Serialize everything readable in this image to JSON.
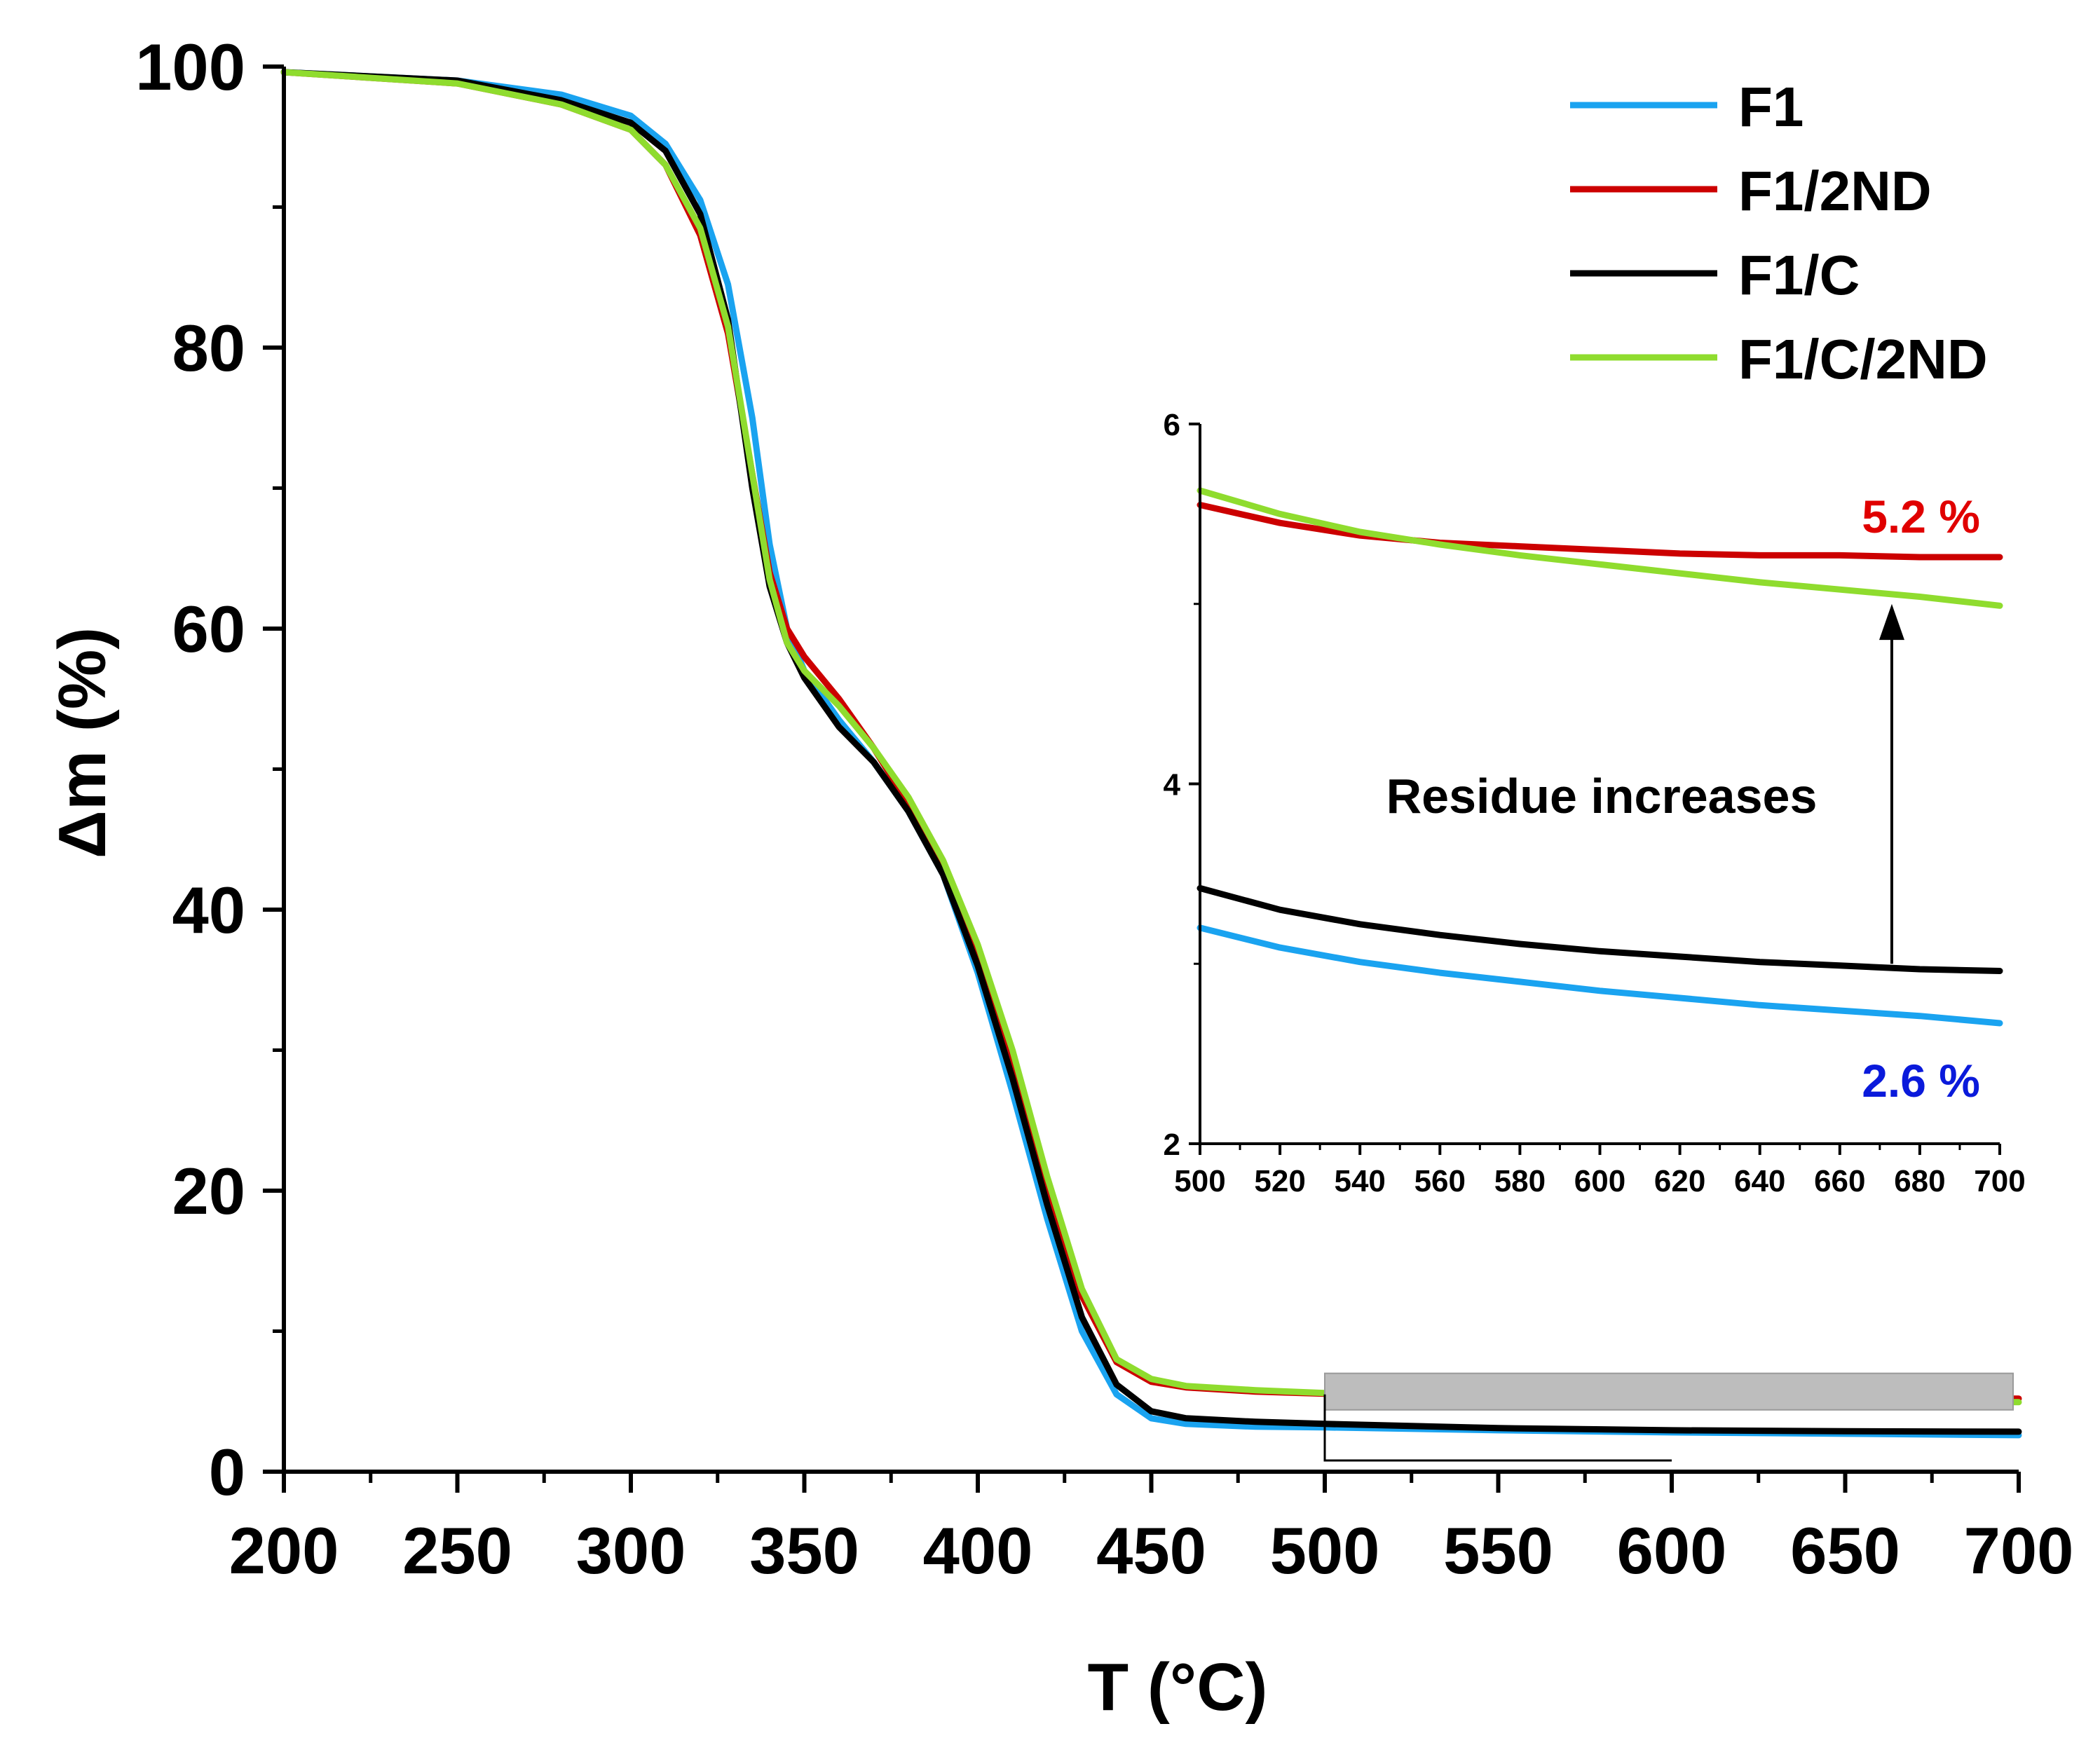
{
  "chart_data": {
    "type": "line",
    "xlabel": "T (°C)",
    "ylabel": "Δm (%)",
    "xlim": [
      200,
      700
    ],
    "ylim": [
      0,
      100
    ],
    "xticks": [
      200,
      250,
      300,
      350,
      400,
      450,
      500,
      550,
      600,
      650,
      700
    ],
    "yticks": [
      0,
      20,
      40,
      60,
      80,
      100
    ],
    "legend_position": "top-right",
    "series": [
      {
        "name": "F1",
        "color": "#1aa3f0",
        "x": [
          200,
          250,
          280,
          300,
          310,
          320,
          328,
          335,
          340,
          345,
          350,
          360,
          370,
          380,
          390,
          400,
          410,
          420,
          430,
          440,
          450,
          460,
          480,
          500,
          550,
          600,
          650,
          700
        ],
        "y": [
          99.6,
          99.0,
          98.0,
          96.5,
          94.5,
          90.5,
          84.5,
          75,
          66,
          60,
          57,
          53.5,
          50.5,
          47,
          42.5,
          35.5,
          27,
          18,
          10,
          5.5,
          3.8,
          3.4,
          3.2,
          3.15,
          2.95,
          2.8,
          2.7,
          2.6
        ]
      },
      {
        "name": "F1/2ND",
        "color": "#cc0000",
        "x": [
          200,
          250,
          280,
          300,
          310,
          320,
          328,
          335,
          340,
          345,
          350,
          360,
          370,
          380,
          390,
          400,
          410,
          420,
          430,
          440,
          450,
          460,
          480,
          500,
          550,
          600,
          650,
          700
        ],
        "y": [
          99.6,
          98.8,
          97.3,
          95.5,
          93,
          88,
          81,
          71,
          64,
          60,
          58,
          55,
          51.5,
          47.5,
          43,
          37,
          29.5,
          20.5,
          12.5,
          7.8,
          6.4,
          6.0,
          5.7,
          5.55,
          5.35,
          5.25,
          5.22,
          5.2
        ]
      },
      {
        "name": "F1/C",
        "color": "#000000",
        "x": [
          200,
          250,
          280,
          300,
          310,
          320,
          328,
          335,
          340,
          345,
          350,
          360,
          370,
          380,
          390,
          400,
          410,
          420,
          430,
          440,
          450,
          460,
          480,
          500,
          550,
          600,
          650,
          700
        ],
        "y": [
          99.6,
          99.0,
          97.6,
          96,
          94,
          89.5,
          82,
          70,
          63,
          59,
          56.5,
          53,
          50.5,
          47,
          42.5,
          36,
          28,
          19,
          11,
          6.2,
          4.3,
          3.8,
          3.55,
          3.4,
          3.1,
          2.95,
          2.88,
          2.85
        ]
      },
      {
        "name": "F1/C/2ND",
        "color": "#8fdc2e",
        "x": [
          200,
          250,
          280,
          300,
          310,
          320,
          328,
          335,
          340,
          345,
          350,
          360,
          370,
          380,
          390,
          400,
          410,
          420,
          430,
          440,
          450,
          460,
          480,
          500,
          550,
          600,
          650,
          700
        ],
        "y": [
          99.6,
          98.8,
          97.3,
          95.5,
          93,
          88.5,
          81.5,
          71,
          63.5,
          59,
          57,
          54.5,
          51.5,
          48,
          43.5,
          37.5,
          30,
          21,
          13,
          8,
          6.6,
          6.1,
          5.8,
          5.6,
          5.35,
          5.2,
          5.05,
          4.95
        ]
      }
    ],
    "zoom_box": {
      "x": [
        500,
        700
      ],
      "y": [
        2,
        6
      ]
    },
    "inset": {
      "xlim": [
        500,
        700
      ],
      "ylim": [
        2,
        6
      ],
      "xticks": [
        500,
        520,
        540,
        560,
        580,
        600,
        620,
        640,
        660,
        680,
        700
      ],
      "yticks": [
        2,
        4,
        6
      ],
      "series": [
        {
          "name": "F1/2ND",
          "color": "#cc0000",
          "x": [
            500,
            520,
            540,
            560,
            580,
            600,
            620,
            640,
            660,
            680,
            700
          ],
          "y": [
            5.55,
            5.45,
            5.38,
            5.34,
            5.32,
            5.3,
            5.28,
            5.27,
            5.27,
            5.26,
            5.26
          ]
        },
        {
          "name": "F1/C/2ND",
          "color": "#8fdc2e",
          "x": [
            500,
            520,
            540,
            560,
            580,
            600,
            620,
            640,
            660,
            680,
            700
          ],
          "y": [
            5.63,
            5.5,
            5.4,
            5.33,
            5.27,
            5.22,
            5.17,
            5.12,
            5.08,
            5.04,
            4.99
          ]
        },
        {
          "name": "F1/C",
          "color": "#000000",
          "x": [
            500,
            520,
            540,
            560,
            580,
            600,
            620,
            640,
            660,
            680,
            700
          ],
          "y": [
            3.42,
            3.3,
            3.22,
            3.16,
            3.11,
            3.07,
            3.04,
            3.01,
            2.99,
            2.97,
            2.96
          ]
        },
        {
          "name": "F1",
          "color": "#1aa3f0",
          "x": [
            500,
            520,
            540,
            560,
            580,
            600,
            620,
            640,
            660,
            680,
            700
          ],
          "y": [
            3.2,
            3.09,
            3.01,
            2.95,
            2.9,
            2.85,
            2.81,
            2.77,
            2.74,
            2.71,
            2.67
          ]
        }
      ],
      "annotations": {
        "top_value": "5.2 %",
        "top_color": "#e00000",
        "bottom_value": "2.6 %",
        "bottom_color": "#0a1adb",
        "arrow_text": "Residue increases"
      }
    }
  }
}
